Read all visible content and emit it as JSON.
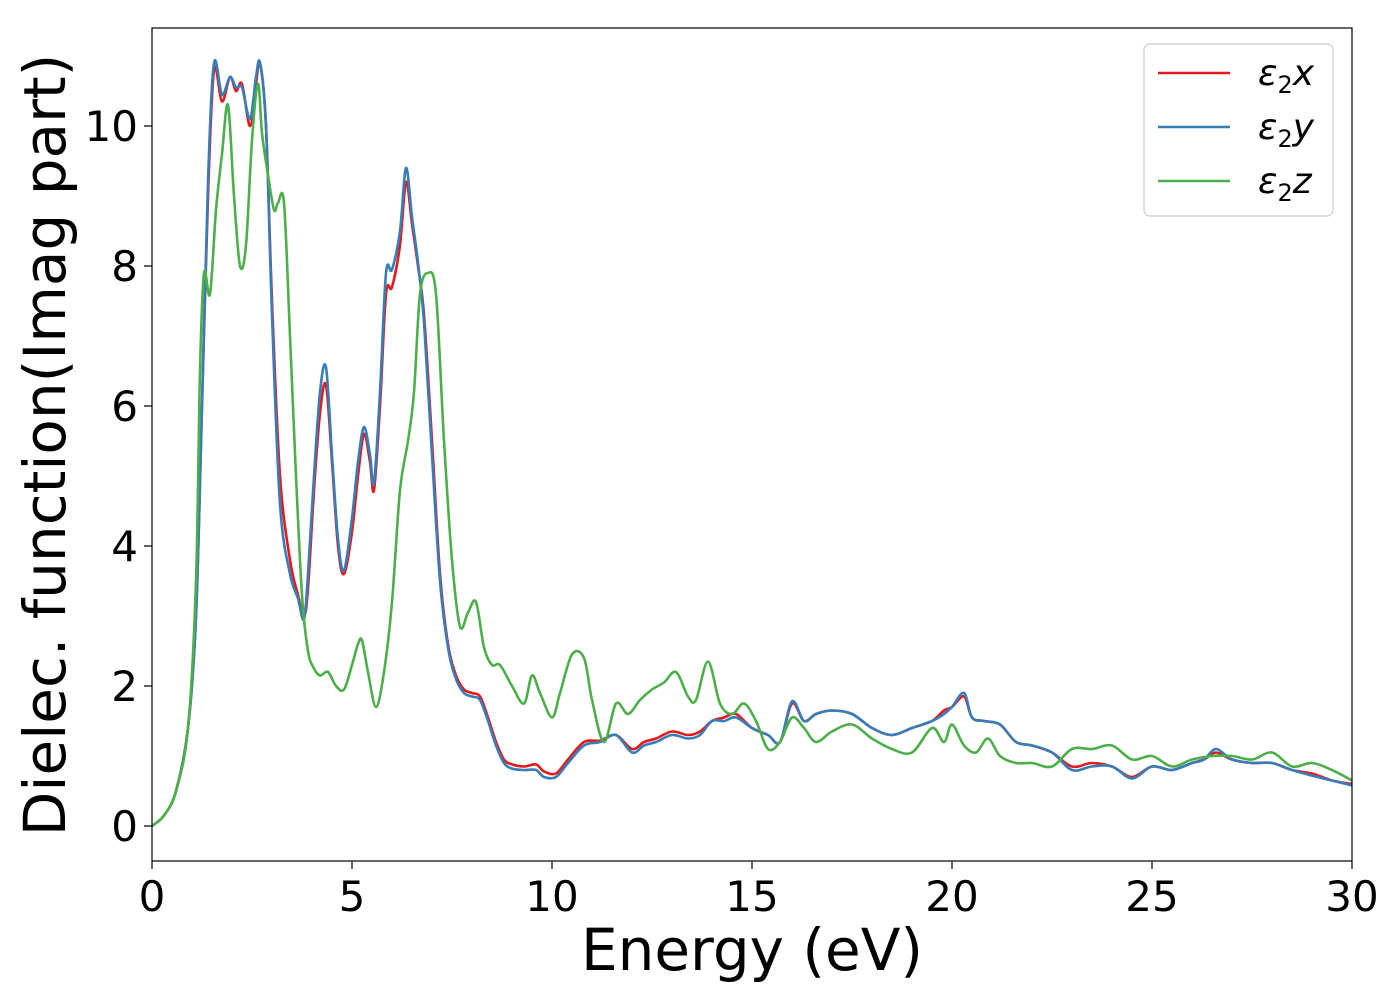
{
  "chart_data": {
    "type": "line",
    "title": "",
    "xlabel": "Energy (eV)",
    "ylabel": "Dielec. function(Imag part)",
    "xlim": [
      0,
      30
    ],
    "ylim": [
      -0.5,
      11.4
    ],
    "xticks": [
      0,
      5,
      10,
      15,
      20,
      25,
      30
    ],
    "yticks": [
      0,
      2,
      4,
      6,
      8,
      10
    ],
    "grid": false,
    "legend_position": "top-right",
    "series": [
      {
        "name": "ε2x",
        "legend_main": "ε",
        "legend_sub": "2",
        "legend_suffix": "x",
        "color": "#e41a1c",
        "x": [
          0,
          0.3,
          0.6,
          0.9,
          1.1,
          1.25,
          1.4,
          1.55,
          1.75,
          1.95,
          2.1,
          2.25,
          2.45,
          2.6,
          2.7,
          2.85,
          3.0,
          3.2,
          3.45,
          3.65,
          3.8,
          3.9,
          4.05,
          4.2,
          4.35,
          4.5,
          4.65,
          4.8,
          5.0,
          5.15,
          5.3,
          5.45,
          5.55,
          5.7,
          5.85,
          6.0,
          6.2,
          6.35,
          6.5,
          6.65,
          6.8,
          7.0,
          7.2,
          7.4,
          7.6,
          7.8,
          8.0,
          8.2,
          8.4,
          8.6,
          8.8,
          9.0,
          9.3,
          9.6,
          9.8,
          10.1,
          10.4,
          10.8,
          11.2,
          11.6,
          12.0,
          12.3,
          12.6,
          13.0,
          13.4,
          13.7,
          14.0,
          14.3,
          14.6,
          15.0,
          15.4,
          15.7,
          16.0,
          16.3,
          16.6,
          17.0,
          17.5,
          18.0,
          18.5,
          19.0,
          19.5,
          19.8,
          20.0,
          20.3,
          20.5,
          20.8,
          21.2,
          21.6,
          22.0,
          22.5,
          23.0,
          23.5,
          24.0,
          24.5,
          25.0,
          25.5,
          26.0,
          26.3,
          26.6,
          27.0,
          27.5,
          28.0,
          28.5,
          29.0,
          29.5,
          30.0
        ],
        "y": [
          0,
          0.15,
          0.5,
          1.4,
          3.0,
          6.0,
          9.0,
          10.8,
          10.35,
          10.7,
          10.5,
          10.6,
          10.0,
          10.6,
          10.9,
          10.0,
          7.5,
          5.0,
          3.8,
          3.3,
          3.0,
          3.4,
          4.8,
          5.9,
          6.3,
          5.2,
          4.0,
          3.6,
          4.2,
          5.0,
          5.6,
          5.2,
          4.8,
          6.0,
          7.6,
          7.7,
          8.3,
          9.2,
          8.6,
          8.0,
          7.3,
          5.5,
          3.6,
          2.6,
          2.15,
          1.95,
          1.9,
          1.85,
          1.55,
          1.2,
          0.95,
          0.88,
          0.85,
          0.88,
          0.78,
          0.75,
          0.95,
          1.2,
          1.22,
          1.3,
          1.1,
          1.2,
          1.25,
          1.35,
          1.3,
          1.35,
          1.5,
          1.55,
          1.6,
          1.4,
          1.3,
          1.2,
          1.75,
          1.5,
          1.6,
          1.65,
          1.6,
          1.4,
          1.3,
          1.4,
          1.5,
          1.65,
          1.7,
          1.85,
          1.55,
          1.5,
          1.45,
          1.2,
          1.15,
          1.05,
          0.85,
          0.9,
          0.85,
          0.7,
          0.85,
          0.8,
          0.9,
          0.95,
          1.05,
          0.95,
          0.9,
          0.9,
          0.8,
          0.75,
          0.65,
          0.6
        ]
      },
      {
        "name": "ε2y",
        "legend_main": "ε",
        "legend_sub": "2",
        "legend_suffix": "y",
        "color": "#377eb8",
        "x": [
          0,
          0.3,
          0.6,
          0.9,
          1.1,
          1.25,
          1.4,
          1.55,
          1.75,
          1.95,
          2.1,
          2.25,
          2.45,
          2.6,
          2.7,
          2.85,
          3.0,
          3.2,
          3.45,
          3.65,
          3.8,
          3.9,
          4.05,
          4.2,
          4.35,
          4.5,
          4.65,
          4.8,
          5.0,
          5.15,
          5.3,
          5.45,
          5.55,
          5.7,
          5.85,
          6.0,
          6.2,
          6.35,
          6.5,
          6.65,
          6.8,
          7.0,
          7.2,
          7.4,
          7.6,
          7.8,
          8.0,
          8.2,
          8.4,
          8.6,
          8.8,
          9.0,
          9.3,
          9.6,
          9.8,
          10.1,
          10.4,
          10.8,
          11.2,
          11.6,
          12.0,
          12.3,
          12.6,
          13.0,
          13.4,
          13.7,
          14.0,
          14.3,
          14.6,
          15.0,
          15.4,
          15.7,
          16.0,
          16.3,
          16.6,
          17.0,
          17.5,
          18.0,
          18.5,
          19.0,
          19.5,
          19.8,
          20.0,
          20.3,
          20.5,
          20.8,
          21.2,
          21.6,
          22.0,
          22.5,
          23.0,
          23.5,
          24.0,
          24.5,
          25.0,
          25.5,
          26.0,
          26.3,
          26.6,
          27.0,
          27.5,
          28.0,
          28.5,
          29.0,
          29.5,
          30.0
        ],
        "y": [
          0,
          0.15,
          0.5,
          1.4,
          3.0,
          6.0,
          9.2,
          10.9,
          10.45,
          10.7,
          10.55,
          10.55,
          10.1,
          10.7,
          10.9,
          10.0,
          7.3,
          4.6,
          3.6,
          3.25,
          2.95,
          3.6,
          5.0,
          6.2,
          6.55,
          5.3,
          4.1,
          3.65,
          4.4,
          5.2,
          5.7,
          5.3,
          4.9,
          6.2,
          7.9,
          7.95,
          8.5,
          9.4,
          8.7,
          8.05,
          7.2,
          5.3,
          3.5,
          2.55,
          2.1,
          1.9,
          1.85,
          1.8,
          1.5,
          1.15,
          0.9,
          0.82,
          0.8,
          0.8,
          0.7,
          0.7,
          0.9,
          1.15,
          1.2,
          1.3,
          1.05,
          1.15,
          1.2,
          1.3,
          1.25,
          1.3,
          1.5,
          1.5,
          1.55,
          1.4,
          1.3,
          1.2,
          1.78,
          1.5,
          1.6,
          1.65,
          1.6,
          1.4,
          1.3,
          1.4,
          1.5,
          1.6,
          1.7,
          1.9,
          1.55,
          1.5,
          1.45,
          1.2,
          1.15,
          1.05,
          0.8,
          0.85,
          0.85,
          0.68,
          0.85,
          0.8,
          0.9,
          0.95,
          1.1,
          0.95,
          0.9,
          0.9,
          0.8,
          0.72,
          0.65,
          0.58
        ]
      },
      {
        "name": "ε2z",
        "legend_main": "ε",
        "legend_sub": "2",
        "legend_suffix": "z",
        "color": "#4daf4a",
        "x": [
          0,
          0.3,
          0.6,
          0.9,
          1.1,
          1.2,
          1.3,
          1.45,
          1.6,
          1.75,
          1.9,
          2.05,
          2.2,
          2.35,
          2.5,
          2.65,
          2.75,
          2.9,
          3.05,
          3.15,
          3.3,
          3.45,
          3.6,
          3.75,
          3.9,
          4.05,
          4.2,
          4.4,
          4.6,
          4.8,
          5.0,
          5.15,
          5.25,
          5.4,
          5.6,
          5.8,
          6.0,
          6.2,
          6.4,
          6.55,
          6.7,
          6.9,
          7.1,
          7.3,
          7.5,
          7.7,
          7.9,
          8.1,
          8.3,
          8.5,
          8.7,
          9.0,
          9.3,
          9.5,
          9.7,
          10.0,
          10.2,
          10.5,
          10.8,
          11.0,
          11.3,
          11.6,
          11.9,
          12.2,
          12.5,
          12.8,
          13.1,
          13.4,
          13.6,
          13.9,
          14.2,
          14.5,
          14.8,
          15.1,
          15.4,
          15.7,
          16.0,
          16.3,
          16.6,
          17.0,
          17.5,
          18.0,
          18.5,
          19.0,
          19.5,
          19.8,
          20.0,
          20.3,
          20.6,
          20.9,
          21.2,
          21.6,
          22.0,
          22.5,
          23.0,
          23.5,
          24.0,
          24.5,
          25.0,
          25.5,
          26.0,
          26.5,
          27.0,
          27.5,
          28.0,
          28.5,
          29.0,
          29.5,
          30.0
        ],
        "y": [
          0,
          0.15,
          0.5,
          1.4,
          3.5,
          6.5,
          7.9,
          7.6,
          8.8,
          9.6,
          10.3,
          9.0,
          8.0,
          8.3,
          9.8,
          10.6,
          9.9,
          9.3,
          8.8,
          8.9,
          8.9,
          7.0,
          5.0,
          3.3,
          2.5,
          2.25,
          2.15,
          2.2,
          2.0,
          1.95,
          2.3,
          2.6,
          2.65,
          2.2,
          1.7,
          2.2,
          3.2,
          4.8,
          5.5,
          6.2,
          7.6,
          7.9,
          7.6,
          5.5,
          3.8,
          2.85,
          3.05,
          3.2,
          2.55,
          2.3,
          2.3,
          2.0,
          1.75,
          2.15,
          1.9,
          1.55,
          1.9,
          2.45,
          2.4,
          1.8,
          1.2,
          1.75,
          1.6,
          1.8,
          1.95,
          2.05,
          2.2,
          1.85,
          1.8,
          2.35,
          1.75,
          1.6,
          1.75,
          1.5,
          1.1,
          1.2,
          1.55,
          1.4,
          1.2,
          1.35,
          1.45,
          1.25,
          1.1,
          1.05,
          1.4,
          1.2,
          1.45,
          1.15,
          1.05,
          1.25,
          1.0,
          0.9,
          0.9,
          0.85,
          1.1,
          1.1,
          1.15,
          0.95,
          1.0,
          0.85,
          0.95,
          1.0,
          1.0,
          0.95,
          1.05,
          0.85,
          0.9,
          0.8,
          0.65
        ]
      }
    ]
  }
}
